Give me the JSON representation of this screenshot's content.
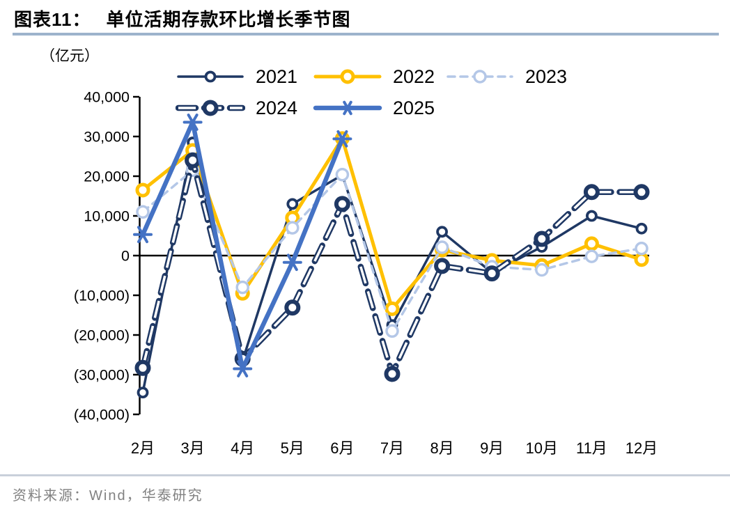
{
  "header": {
    "title_prefix": "图表11：",
    "title": "单位活期存款环比增长季节图"
  },
  "footer": {
    "source": "资料来源：Wind，华泰研究"
  },
  "chart_data": {
    "type": "line",
    "title": "单位活期存款环比增长季节图",
    "unit_label": "（亿元）",
    "xlabel": "",
    "ylabel": "亿元",
    "ylim": [
      -40000,
      40000
    ],
    "grid": false,
    "legend_position": "top",
    "categories": [
      "2月",
      "3月",
      "4月",
      "5月",
      "6月",
      "7月",
      "8月",
      "9月",
      "10月",
      "11月",
      "12月"
    ],
    "y_ticks": [
      {
        "value": 40000,
        "label": "40,000"
      },
      {
        "value": 30000,
        "label": "30,000"
      },
      {
        "value": 20000,
        "label": "20,000"
      },
      {
        "value": 10000,
        "label": "10,000"
      },
      {
        "value": 0,
        "label": "0"
      },
      {
        "value": -10000,
        "label": "(10,000)"
      },
      {
        "value": -20000,
        "label": "(20,000)"
      },
      {
        "value": -30000,
        "label": "(30,000)"
      },
      {
        "value": -40000,
        "label": "(40,000)"
      }
    ],
    "series": [
      {
        "name": "2021",
        "color": "#1f3864",
        "line": "solid",
        "width": 3.5,
        "marker": "circle",
        "marker_r": 6.5,
        "marker_sw": 3.8,
        "values": [
          -34500,
          28500,
          -26500,
          13000,
          20300,
          -17500,
          6000,
          -4300,
          2200,
          10000,
          6800
        ]
      },
      {
        "name": "2022",
        "color": "#ffc000",
        "line": "solid",
        "width": 5,
        "marker": "circle",
        "marker_r": 8,
        "marker_sw": 5,
        "values": [
          16500,
          26500,
          -9500,
          9500,
          29500,
          -13400,
          1400,
          -1200,
          -2500,
          3000,
          -1000
        ]
      },
      {
        "name": "2023",
        "color": "#b4c7e7",
        "line": "dashed",
        "width": 3.5,
        "marker": "circle",
        "marker_r": 8,
        "marker_sw": 3.5,
        "values": [
          11000,
          21500,
          -8000,
          7000,
          20400,
          -19000,
          2100,
          -2800,
          -3600,
          -200,
          1800
        ]
      },
      {
        "name": "2024",
        "color": "#1f3864",
        "line": "outlined-dash",
        "width": 8.5,
        "marker": "circle",
        "marker_r": 8.5,
        "marker_sw": 6,
        "values": [
          -28300,
          24000,
          -26000,
          -13100,
          13000,
          -29800,
          -2600,
          -4500,
          4200,
          16000,
          16000
        ]
      },
      {
        "name": "2025",
        "color": "#4472c4",
        "line": "solid",
        "width": 6.5,
        "marker": "asterisk",
        "marker_r": 12,
        "marker_sw": 4,
        "values": [
          5300,
          33600,
          -28500,
          -1700,
          29400,
          null,
          null,
          null,
          null,
          null,
          null
        ]
      }
    ]
  }
}
